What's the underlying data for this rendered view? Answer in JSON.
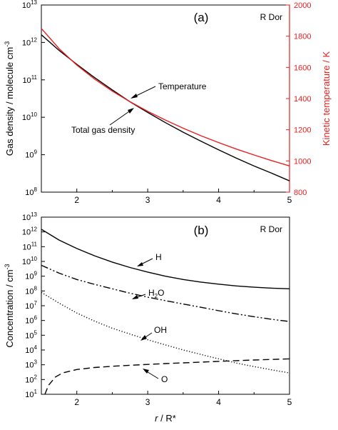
{
  "chart_data": [
    {
      "type": "line",
      "panel_label": "(a)",
      "star_label": "R Dor",
      "xlabel": "",
      "ylabel": "Gas density / molecule cm",
      "ylabel_sup": "-3",
      "y2label": "Kinetic temperature / K",
      "y_scale": "log",
      "xlim": [
        1.5,
        5
      ],
      "ylim": [
        100000000.0,
        10000000000000.0
      ],
      "y2lim": [
        800,
        2000
      ],
      "x_ticks": [
        "2",
        "3",
        "4",
        "5"
      ],
      "y_ticks": [
        {
          "base": "10",
          "exp": "8"
        },
        {
          "base": "10",
          "exp": "9"
        },
        {
          "base": "10",
          "exp": "10"
        },
        {
          "base": "10",
          "exp": "11"
        },
        {
          "base": "10",
          "exp": "12"
        },
        {
          "base": "10",
          "exp": "13"
        }
      ],
      "y2_ticks": [
        "800",
        "1000",
        "1200",
        "1400",
        "1600",
        "1800",
        "2000"
      ],
      "series": [
        {
          "name": "Total gas density",
          "axis": "left",
          "color": "#000000",
          "x": [
            1.5,
            1.75,
            2.0,
            2.25,
            2.5,
            2.75,
            3.0,
            3.25,
            3.5,
            3.75,
            4.0,
            4.25,
            4.5,
            4.75,
            5.0
          ],
          "y": [
            1600000000000.0,
            610000000000.0,
            260000000000.0,
            115000000000.0,
            54000000000.0,
            26000000000.0,
            13500000000.0,
            7200000000.0,
            4000000000.0,
            2300000000.0,
            1350000000.0,
            810000000.0,
            500000000.0,
            320000000.0,
            200000000.0
          ]
        },
        {
          "name": "Temperature",
          "axis": "right",
          "color": "#e8201f",
          "x": [
            1.5,
            1.75,
            2.0,
            2.25,
            2.5,
            2.75,
            3.0,
            3.25,
            3.5,
            3.75,
            4.0,
            4.25,
            4.5,
            4.75,
            5.0
          ],
          "y": [
            1850,
            1720,
            1615,
            1525,
            1448,
            1380,
            1318,
            1262,
            1210,
            1162,
            1118,
            1076,
            1038,
            1002,
            968
          ]
        }
      ]
    },
    {
      "type": "line",
      "panel_label": "(b)",
      "star_label": "R Dor",
      "xlabel": "r / R*",
      "xlabel_var": "r",
      "xlabel_rest": " / R*",
      "ylabel": "Concentration / cm",
      "ylabel_sup": "-3",
      "y_scale": "log",
      "xlim": [
        1.5,
        5
      ],
      "ylim": [
        10,
        10000000000000.0
      ],
      "x_ticks": [
        "2",
        "3",
        "4",
        "5"
      ],
      "y_ticks": [
        {
          "base": "10",
          "exp": "1"
        },
        {
          "base": "10",
          "exp": "2"
        },
        {
          "base": "10",
          "exp": "3"
        },
        {
          "base": "10",
          "exp": "4"
        },
        {
          "base": "10",
          "exp": "5"
        },
        {
          "base": "10",
          "exp": "6"
        },
        {
          "base": "10",
          "exp": "7"
        },
        {
          "base": "10",
          "exp": "8"
        },
        {
          "base": "10",
          "exp": "9"
        },
        {
          "base": "10",
          "exp": "10"
        },
        {
          "base": "10",
          "exp": "11"
        },
        {
          "base": "10",
          "exp": "12"
        },
        {
          "base": "10",
          "exp": "13"
        }
      ],
      "series": [
        {
          "name": "H",
          "style": "solid",
          "color": "#000000",
          "x": [
            1.5,
            1.75,
            2.0,
            2.25,
            2.5,
            2.75,
            3.0,
            3.25,
            3.5,
            3.75,
            4.0,
            4.25,
            4.5,
            4.75,
            5.0
          ],
          "y": [
            1500000000000.0,
            280000000000.0,
            75000000000.0,
            24000000000.0,
            9000000000.0,
            3900000000.0,
            1900000000.0,
            1000000000.0,
            600000000.0,
            400000000.0,
            290000000.0,
            220000000.0,
            180000000.0,
            155000000.0,
            140000000.0
          ]
        },
        {
          "name": "H₂O",
          "style": "dashdotdot",
          "color": "#000000",
          "x": [
            1.5,
            1.75,
            2.0,
            2.25,
            2.5,
            2.75,
            3.0,
            3.25,
            3.5,
            3.75,
            4.0,
            4.25,
            4.5,
            4.75,
            5.0
          ],
          "y": [
            5500000000.0,
            1600000000.0,
            600000000.0,
            280000000.0,
            140000000.0,
            70000000.0,
            38000000.0,
            22000000.0,
            13000000.0,
            7800000.0,
            4600000.0,
            2800000.0,
            1800000.0,
            1200000.0,
            850000.0
          ]
        },
        {
          "name": "OH",
          "style": "dotted",
          "color": "#000000",
          "x": [
            1.5,
            1.75,
            2.0,
            2.25,
            2.5,
            2.75,
            3.0,
            3.25,
            3.5,
            3.75,
            4.0,
            4.25,
            4.5,
            4.75,
            5.0
          ],
          "y": [
            80000000.0,
            15000000.0,
            3200000.0,
            900000.0,
            300000.0,
            120000.0,
            50000.0,
            22000.0,
            10000.0,
            5000.0,
            2500.0,
            1300.0,
            750.0,
            450.0,
            280.0
          ]
        },
        {
          "name": "O",
          "style": "dashed",
          "color": "#000000",
          "x": [
            1.55,
            1.6,
            1.7,
            1.8,
            2.0,
            2.25,
            2.5,
            2.75,
            3.0,
            3.25,
            3.5,
            3.75,
            4.0,
            4.25,
            4.5,
            4.75,
            5.0
          ],
          "y": [
            10,
            40,
            150,
            280,
            480,
            650,
            790,
            920,
            1050,
            1200,
            1350,
            1500,
            1700,
            1900,
            2100,
            2300,
            2500
          ]
        }
      ]
    }
  ]
}
